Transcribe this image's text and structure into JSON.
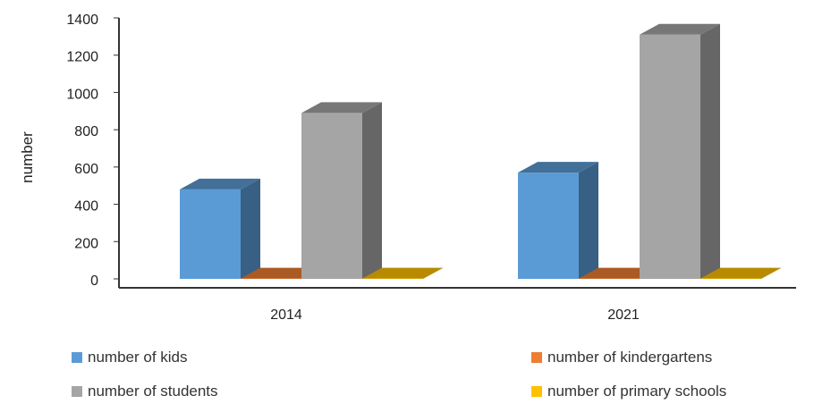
{
  "chart_data": {
    "type": "bar",
    "three_d": true,
    "categories": [
      "2014",
      "2021"
    ],
    "series": [
      {
        "name": "number of kids",
        "values": [
          480,
          570
        ],
        "color": "#5B9BD5"
      },
      {
        "name": "number of kindergartens",
        "values": [
          2,
          2
        ],
        "color": "#ED7D31"
      },
      {
        "name": "number of students",
        "values": [
          890,
          1310
        ],
        "color": "#A5A5A5"
      },
      {
        "name": "number of primary schools",
        "values": [
          2,
          2
        ],
        "color": "#FFC000"
      }
    ],
    "ylabel": "number",
    "ylim": [
      0,
      1400
    ],
    "yticks": [
      "0",
      "200",
      "400",
      "600",
      "800",
      "1000",
      "1200",
      "1400"
    ],
    "grid": false,
    "legend_position": "bottom"
  }
}
